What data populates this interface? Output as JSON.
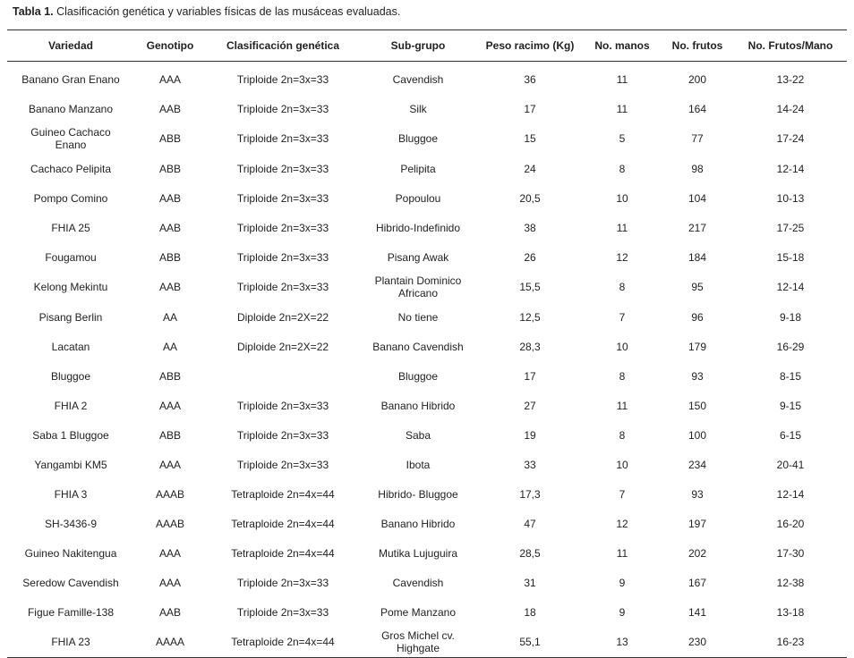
{
  "caption": {
    "label": "Tabla 1.",
    "text": "Clasificación genética y variables físicas de las musáceas evaluadas."
  },
  "table": {
    "headers": [
      "Variedad",
      "Genotipo",
      "Clasificación genética",
      "Sub-grupo",
      "Peso racimo (Kg)",
      "No. manos",
      "No. frutos",
      "No. Frutos/Mano"
    ],
    "rows": [
      [
        "Banano Gran Enano",
        "AAA",
        "Triploide 2n=3x=33",
        "Cavendish",
        "36",
        "11",
        "200",
        "13-22"
      ],
      [
        "Banano Manzano",
        "AAB",
        "Triploide 2n=3x=33",
        "Silk",
        "17",
        "11",
        "164",
        "14-24"
      ],
      [
        "Guineo Cachaco Enano",
        "ABB",
        "Triploide 2n=3x=33",
        "Bluggoe",
        "15",
        "5",
        "77",
        "17-24"
      ],
      [
        "Cachaco Pelipita",
        "ABB",
        "Triploide 2n=3x=33",
        "Pelipita",
        "24",
        "8",
        "98",
        "12-14"
      ],
      [
        "Pompo Comino",
        "AAB",
        "Triploide 2n=3x=33",
        "Popoulou",
        "20,5",
        "10",
        "104",
        "10-13"
      ],
      [
        "FHIA 25",
        "AAB",
        "Triploide 2n=3x=33",
        "Hibrido-Indefinido",
        "38",
        "11",
        "217",
        "17-25"
      ],
      [
        "Fougamou",
        "ABB",
        "Triploide 2n=3x=33",
        "Pisang Awak",
        "26",
        "12",
        "184",
        "15-18"
      ],
      [
        "Kelong Mekintu",
        "AAB",
        "Triploide 2n=3x=33",
        "Plantain Dominico Africano",
        "15,5",
        "8",
        "95",
        "12-14"
      ],
      [
        "Pisang Berlin",
        "AA",
        "Diploide 2n=2X=22",
        "No tiene",
        "12,5",
        "7",
        "96",
        "9-18"
      ],
      [
        "Lacatan",
        "AA",
        "Diploide 2n=2X=22",
        "Banano Cavendish",
        "28,3",
        "10",
        "179",
        "16-29"
      ],
      [
        "Bluggoe",
        "ABB",
        null,
        "Bluggoe",
        "17",
        "8",
        "93",
        "8-15"
      ],
      [
        "FHIA 2",
        "AAA",
        "Triploide 2n=3x=33",
        "Banano Hibrido",
        "27",
        "11",
        "150",
        "9-15"
      ],
      [
        "Saba 1 Bluggoe",
        "ABB",
        "Triploide 2n=3x=33",
        "Saba",
        "19",
        "8",
        "100",
        "6-15"
      ],
      [
        "Yangambi KM5",
        "AAA",
        "Triploide 2n=3x=33",
        "Ibota",
        "33",
        "10",
        "234",
        "20-41"
      ],
      [
        "FHIA 3",
        "AAAB",
        "Tetraploide 2n=4x=44",
        "Hibrido- Bluggoe",
        "17,3",
        "7",
        "93",
        "12-14"
      ],
      [
        "SH-3436-9",
        "AAAB",
        "Tetraploide 2n=4x=44",
        "Banano Hibrido",
        "47",
        "12",
        "197",
        "16-20"
      ],
      [
        "Guineo Nakitengua",
        "AAA",
        "Tetraploide 2n=4x=44",
        "Mutika Lujuguira",
        "28,5",
        "11",
        "202",
        "17-30"
      ],
      [
        "Seredow Cavendish",
        "AAA",
        "Triploide 2n=3x=33",
        "Cavendish",
        "31",
        "9",
        "167",
        "12-38"
      ],
      [
        "Figue Famille-138",
        "AAB",
        "Triploide 2n=3x=33",
        "Pome Manzano",
        "18",
        "9",
        "141",
        "13-18"
      ],
      [
        "FHIA 23",
        "AAAA",
        "Tetraploide 2n=4x=44",
        "Gros Michel cv. Highgate",
        "55,1",
        "13",
        "230",
        "16-23"
      ]
    ]
  }
}
